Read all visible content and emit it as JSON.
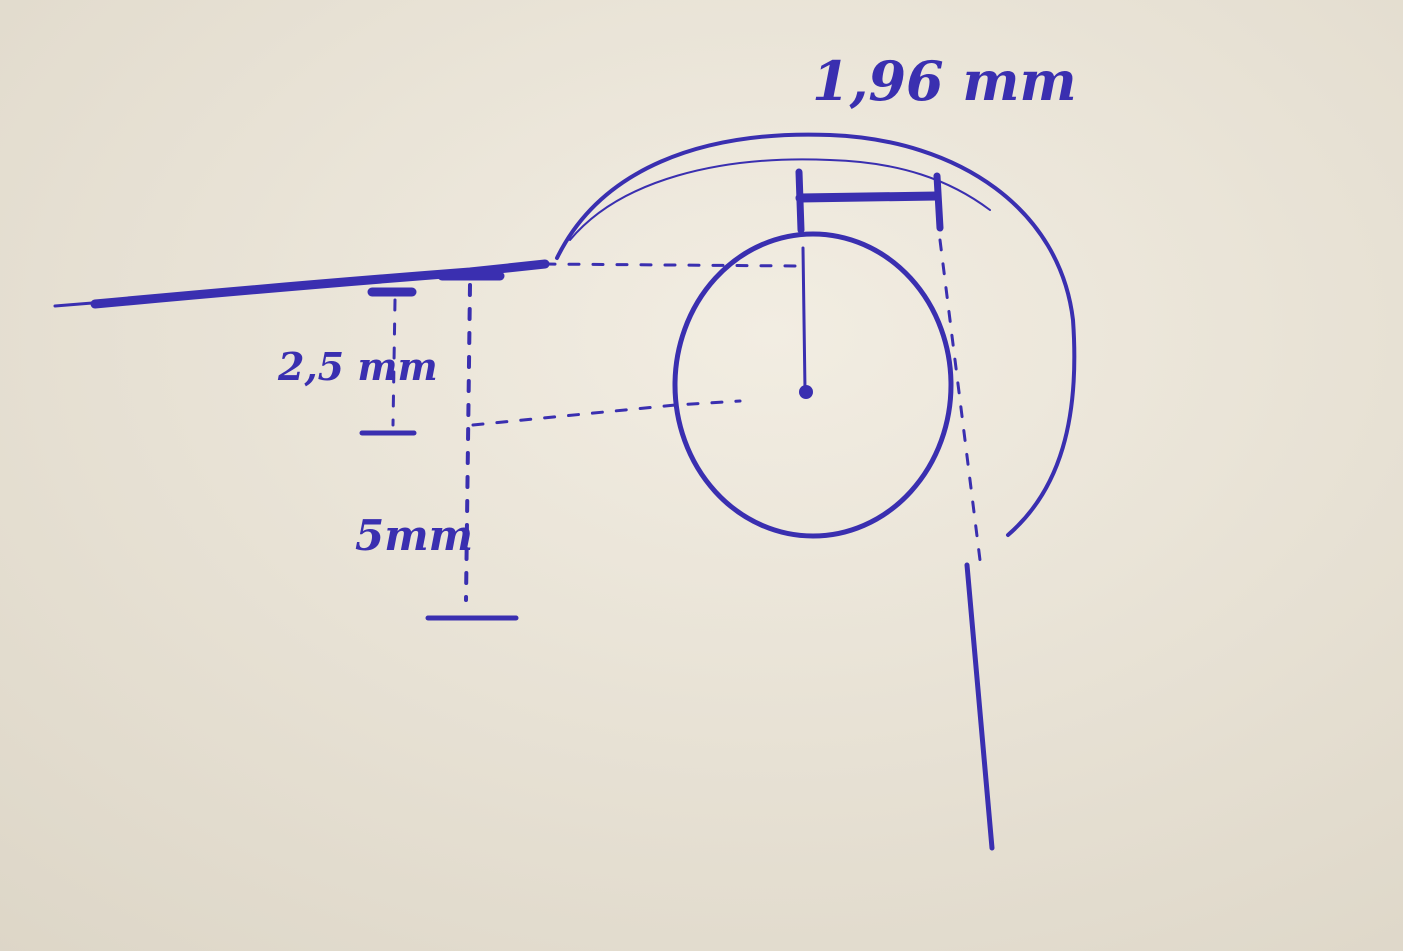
{
  "paper_color": "#ece6d9",
  "ink_color": "#3a2fb0",
  "labels": {
    "top_width": "1,96 mm",
    "upper_offset": "2,5 mm",
    "lower_offset": "5mm"
  }
}
